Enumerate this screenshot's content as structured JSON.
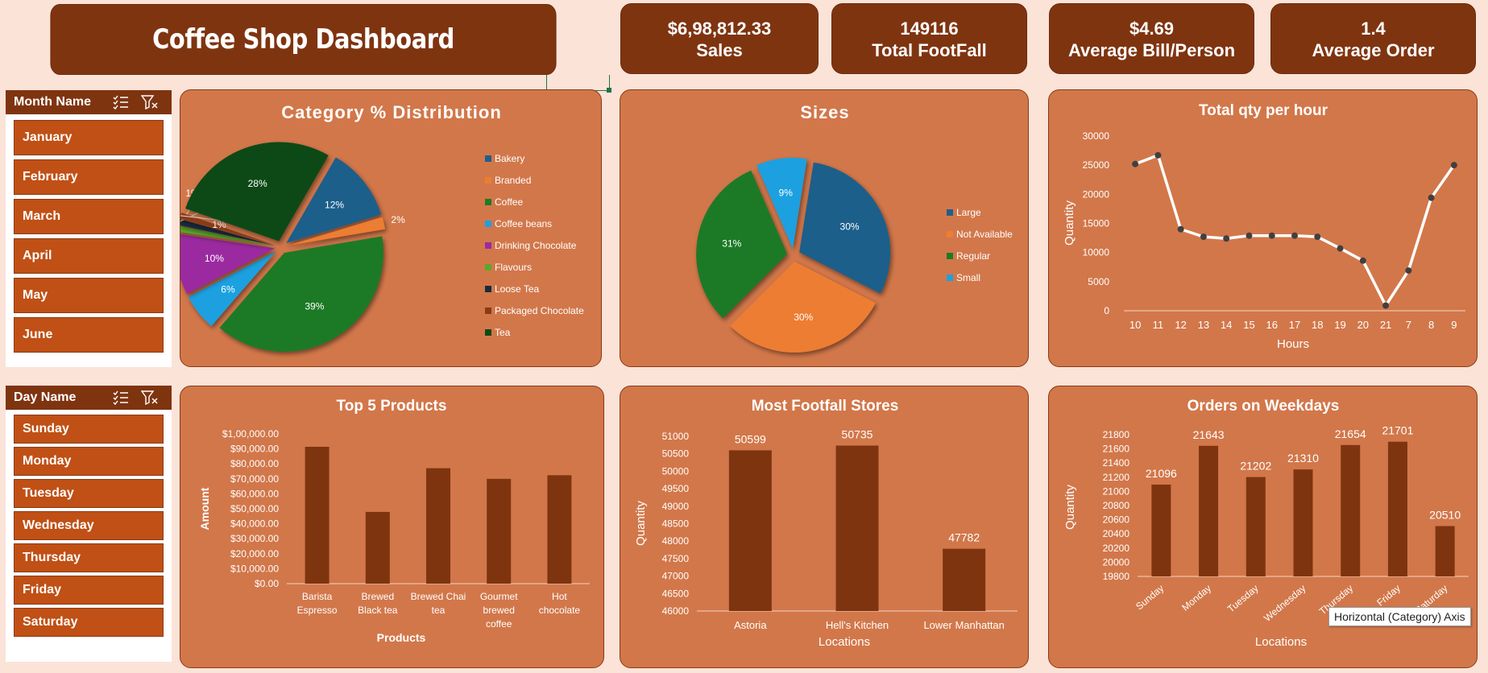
{
  "header": {
    "title": "Coffee Shop Dashboard"
  },
  "kpis": [
    {
      "value": "$6,98,812.33",
      "label": "Sales"
    },
    {
      "value": "149116",
      "label": "Total FootFall"
    },
    {
      "value": "$4.69",
      "label": "Average Bill/Person"
    },
    {
      "value": "1.4",
      "label": "Average Order"
    }
  ],
  "month_slicer": {
    "title": "Month Name",
    "items": [
      "January",
      "February",
      "March",
      "April",
      "May",
      "June"
    ]
  },
  "day_slicer": {
    "title": "Day Name",
    "items": [
      "Sunday",
      "Monday",
      "Tuesday",
      "Wednesday",
      "Thursday",
      "Friday",
      "Saturday"
    ]
  },
  "tooltip": "Horizontal (Category) Axis",
  "colors": {
    "accent_dark": "#7f3410",
    "panel": "#d2774a",
    "slicer_button": "#c05015",
    "background": "#fbe3d8"
  },
  "chart_data": [
    {
      "id": "category",
      "type": "pie",
      "title": "Category % Distribution",
      "categories": [
        "Bakery",
        "Branded",
        "Coffee",
        "Coffee beans",
        "Drinking Chocolate",
        "Flavours",
        "Loose Tea",
        "Packaged Chocolate",
        "Tea"
      ],
      "values": [
        12,
        2,
        39,
        6,
        10,
        1,
        1,
        1,
        28
      ],
      "labels": [
        "12%",
        "2%",
        "39%",
        "6%",
        "10%",
        "1%",
        "1%",
        "1%",
        "28%"
      ],
      "colors": [
        "#1f5f8b",
        "#ed7d31",
        "#1e7a26",
        "#1ea0e0",
        "#9b2aa0",
        "#5aa82a",
        "#1a2a40",
        "#8a3a14",
        "#0e4a14"
      ],
      "legend": "right"
    },
    {
      "id": "sizes",
      "type": "pie",
      "title": "Sizes",
      "categories": [
        "Large",
        "Not Available",
        "Regular",
        "Small"
      ],
      "values": [
        30,
        30,
        31,
        9
      ],
      "labels": [
        "30%",
        "30%",
        "31%",
        "9%"
      ],
      "colors": [
        "#1f5f8b",
        "#ed7d31",
        "#1e7a26",
        "#1ea0e0"
      ],
      "legend": "right"
    },
    {
      "id": "hourly",
      "type": "line",
      "title": "Total qty per hour",
      "xlabel": "Hours",
      "ylabel": "Quantity",
      "categories": [
        "10",
        "11",
        "12",
        "13",
        "14",
        "15",
        "16",
        "17",
        "18",
        "19",
        "20",
        "21",
        "7",
        "8",
        "9"
      ],
      "values": [
        25200,
        26700,
        14000,
        12700,
        12400,
        12900,
        12900,
        12900,
        12700,
        10700,
        8600,
        900,
        6900,
        19400,
        25000
      ],
      "ylim": [
        0,
        30000
      ],
      "yticks": [
        "0",
        "5000",
        "10000",
        "15000",
        "20000",
        "25000",
        "30000"
      ]
    },
    {
      "id": "top5",
      "type": "bar",
      "title": "Top 5 Products",
      "xlabel": "Products",
      "ylabel": "Amount",
      "categories": [
        "Barista Espresso",
        "Brewed Black tea",
        "Brewed Chai tea",
        "Gourmet brewed coffee",
        "Hot chocolate"
      ],
      "category_lines": [
        [
          "Barista",
          "Espresso"
        ],
        [
          "Brewed",
          "Black tea"
        ],
        [
          "Brewed Chai",
          "tea"
        ],
        [
          "Gourmet",
          "brewed",
          "coffee"
        ],
        [
          "Hot",
          "chocolate"
        ]
      ],
      "values": [
        91400,
        47900,
        77100,
        70000,
        72400
      ],
      "ylim": [
        0,
        100000
      ],
      "yticks": [
        "$0.00",
        "$10,000.00",
        "$20,000.00",
        "$30,000.00",
        "$40,000.00",
        "$50,000.00",
        "$60,000.00",
        "$70,000.00",
        "$80,000.00",
        "$90,000.00",
        "$1,00,000.00"
      ]
    },
    {
      "id": "stores",
      "type": "bar",
      "title": "Most Footfall Stores",
      "xlabel": "Locations",
      "ylabel": "Quantity",
      "categories": [
        "Astoria",
        "Hell's Kitchen",
        "Lower Manhattan"
      ],
      "values": [
        50599,
        50735,
        47782
      ],
      "labels": [
        "50599",
        "50735",
        "47782"
      ],
      "ylim": [
        46000,
        51000
      ],
      "yticks": [
        "46000",
        "46500",
        "47000",
        "47500",
        "48000",
        "48500",
        "49000",
        "49500",
        "50000",
        "50500",
        "51000"
      ]
    },
    {
      "id": "weekdays",
      "type": "bar",
      "title": "Orders on Weekdays",
      "xlabel": "Locations",
      "ylabel": "Quantity",
      "categories": [
        "Sunday",
        "Monday",
        "Tuesday",
        "Wednesday",
        "Thursday",
        "Friday",
        "Saturday"
      ],
      "values": [
        21096,
        21643,
        21202,
        21310,
        21654,
        21701,
        20510
      ],
      "labels": [
        "21096",
        "21643",
        "21202",
        "21310",
        "21654",
        "21701",
        "20510"
      ],
      "ylim": [
        19800,
        21800
      ],
      "yticks": [
        "19800",
        "20000",
        "20200",
        "20400",
        "20600",
        "20800",
        "21000",
        "21200",
        "21400",
        "21600",
        "21800"
      ]
    }
  ]
}
